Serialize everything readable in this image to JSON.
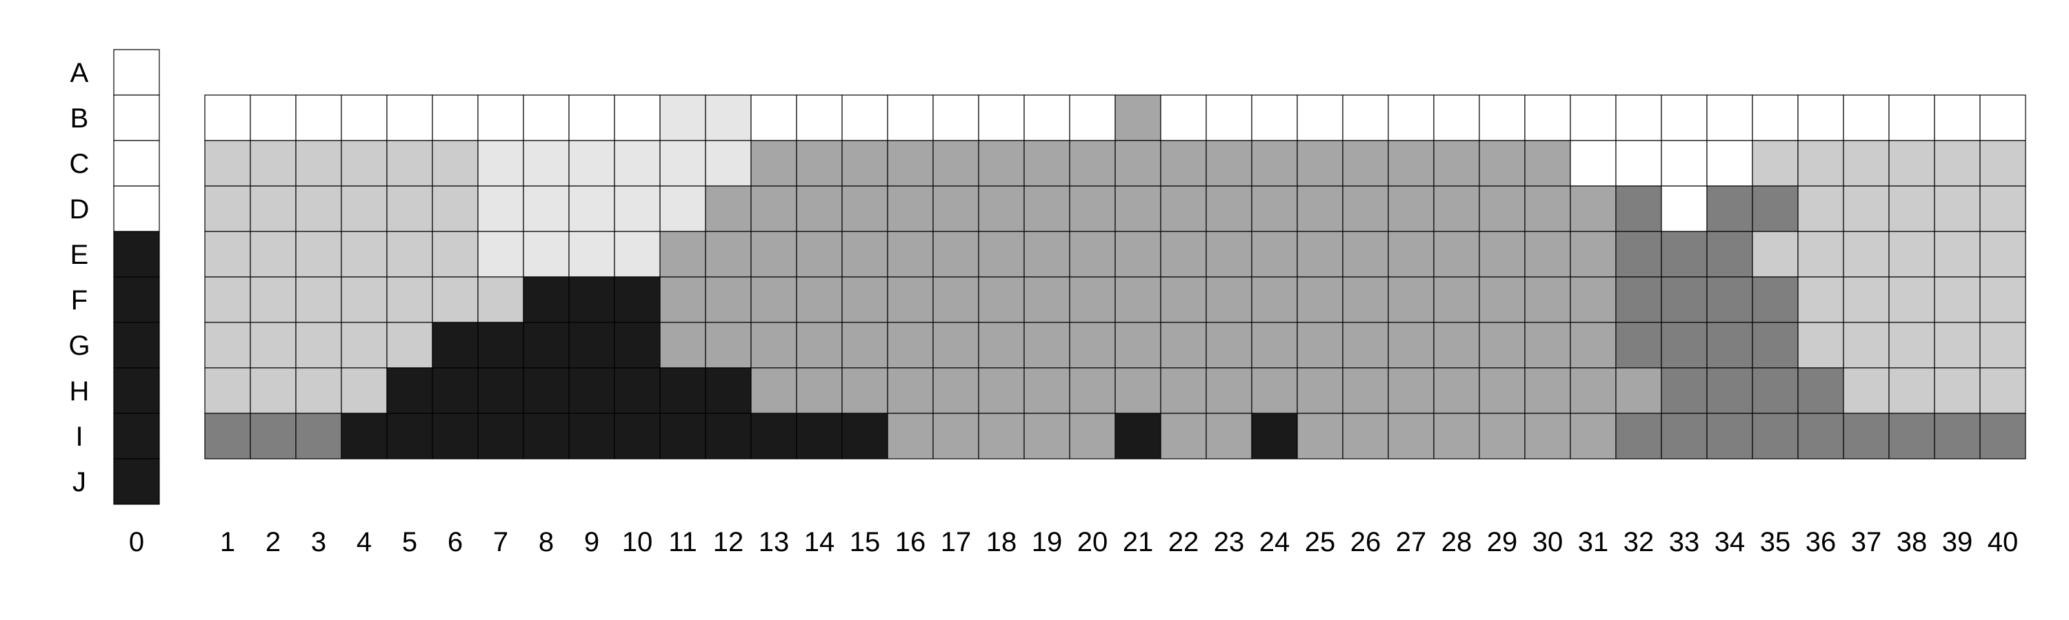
{
  "palette": {
    "0": "#ffffff",
    "1": "#e6e6e6",
    "2": "#cccccc",
    "3": "#a6a6a6",
    "4": "#7f7f7f",
    "5": "#1a1a1a"
  },
  "row_labels": [
    "A",
    "B",
    "C",
    "D",
    "E",
    "F",
    "G",
    "H",
    "I",
    "J"
  ],
  "column_labels": [
    "0",
    "1",
    "2",
    "3",
    "4",
    "5",
    "6",
    "7",
    "8",
    "9",
    "10",
    "11",
    "12",
    "13",
    "14",
    "15",
    "16",
    "17",
    "18",
    "19",
    "20",
    "21",
    "22",
    "23",
    "24",
    "25",
    "26",
    "27",
    "28",
    "29",
    "30",
    "31",
    "32",
    "33",
    "34",
    "35",
    "36",
    "37",
    "38",
    "39",
    "40"
  ],
  "legend_column": {
    "label": "0",
    "cells": [
      0,
      0,
      0,
      0,
      5,
      5,
      5,
      5,
      5,
      5
    ]
  },
  "grid": {
    "first_row_label": "B",
    "rows": [
      [
        0,
        0,
        0,
        0,
        0,
        0,
        0,
        0,
        0,
        0,
        1,
        1,
        0,
        0,
        0,
        0,
        0,
        0,
        0,
        0,
        3,
        0,
        0,
        0,
        0,
        0,
        0,
        0,
        0,
        0,
        0,
        0,
        0,
        0,
        0,
        0,
        0,
        0,
        0,
        0
      ],
      [
        2,
        2,
        2,
        2,
        2,
        2,
        1,
        1,
        1,
        1,
        1,
        1,
        3,
        3,
        3,
        3,
        3,
        3,
        3,
        3,
        3,
        3,
        3,
        3,
        3,
        3,
        3,
        3,
        3,
        3,
        0,
        0,
        0,
        0,
        2,
        2,
        2,
        2,
        2,
        2
      ],
      [
        2,
        2,
        2,
        2,
        2,
        2,
        1,
        1,
        1,
        1,
        1,
        3,
        3,
        3,
        3,
        3,
        3,
        3,
        3,
        3,
        3,
        3,
        3,
        3,
        3,
        3,
        3,
        3,
        3,
        3,
        3,
        4,
        0,
        4,
        4,
        2,
        2,
        2,
        2,
        2
      ],
      [
        2,
        2,
        2,
        2,
        2,
        2,
        1,
        1,
        1,
        1,
        3,
        3,
        3,
        3,
        3,
        3,
        3,
        3,
        3,
        3,
        3,
        3,
        3,
        3,
        3,
        3,
        3,
        3,
        3,
        3,
        3,
        4,
        4,
        4,
        2,
        2,
        2,
        2,
        2,
        2
      ],
      [
        2,
        2,
        2,
        2,
        2,
        2,
        2,
        5,
        5,
        5,
        3,
        3,
        3,
        3,
        3,
        3,
        3,
        3,
        3,
        3,
        3,
        3,
        3,
        3,
        3,
        3,
        3,
        3,
        3,
        3,
        3,
        4,
        4,
        4,
        4,
        2,
        2,
        2,
        2,
        2
      ],
      [
        2,
        2,
        2,
        2,
        2,
        5,
        5,
        5,
        5,
        5,
        3,
        3,
        3,
        3,
        3,
        3,
        3,
        3,
        3,
        3,
        3,
        3,
        3,
        3,
        3,
        3,
        3,
        3,
        3,
        3,
        3,
        4,
        4,
        4,
        4,
        2,
        2,
        2,
        2,
        2
      ],
      [
        2,
        2,
        2,
        2,
        5,
        5,
        5,
        5,
        5,
        5,
        5,
        5,
        3,
        3,
        3,
        3,
        3,
        3,
        3,
        3,
        3,
        3,
        3,
        3,
        3,
        3,
        3,
        3,
        3,
        3,
        3,
        3,
        4,
        4,
        4,
        4,
        2,
        2,
        2,
        2
      ],
      [
        4,
        4,
        4,
        5,
        5,
        5,
        5,
        5,
        5,
        5,
        5,
        5,
        5,
        5,
        5,
        3,
        3,
        3,
        3,
        3,
        5,
        3,
        3,
        5,
        3,
        3,
        3,
        3,
        3,
        3,
        3,
        4,
        4,
        4,
        4,
        4,
        4,
        4,
        4,
        4
      ]
    ]
  }
}
